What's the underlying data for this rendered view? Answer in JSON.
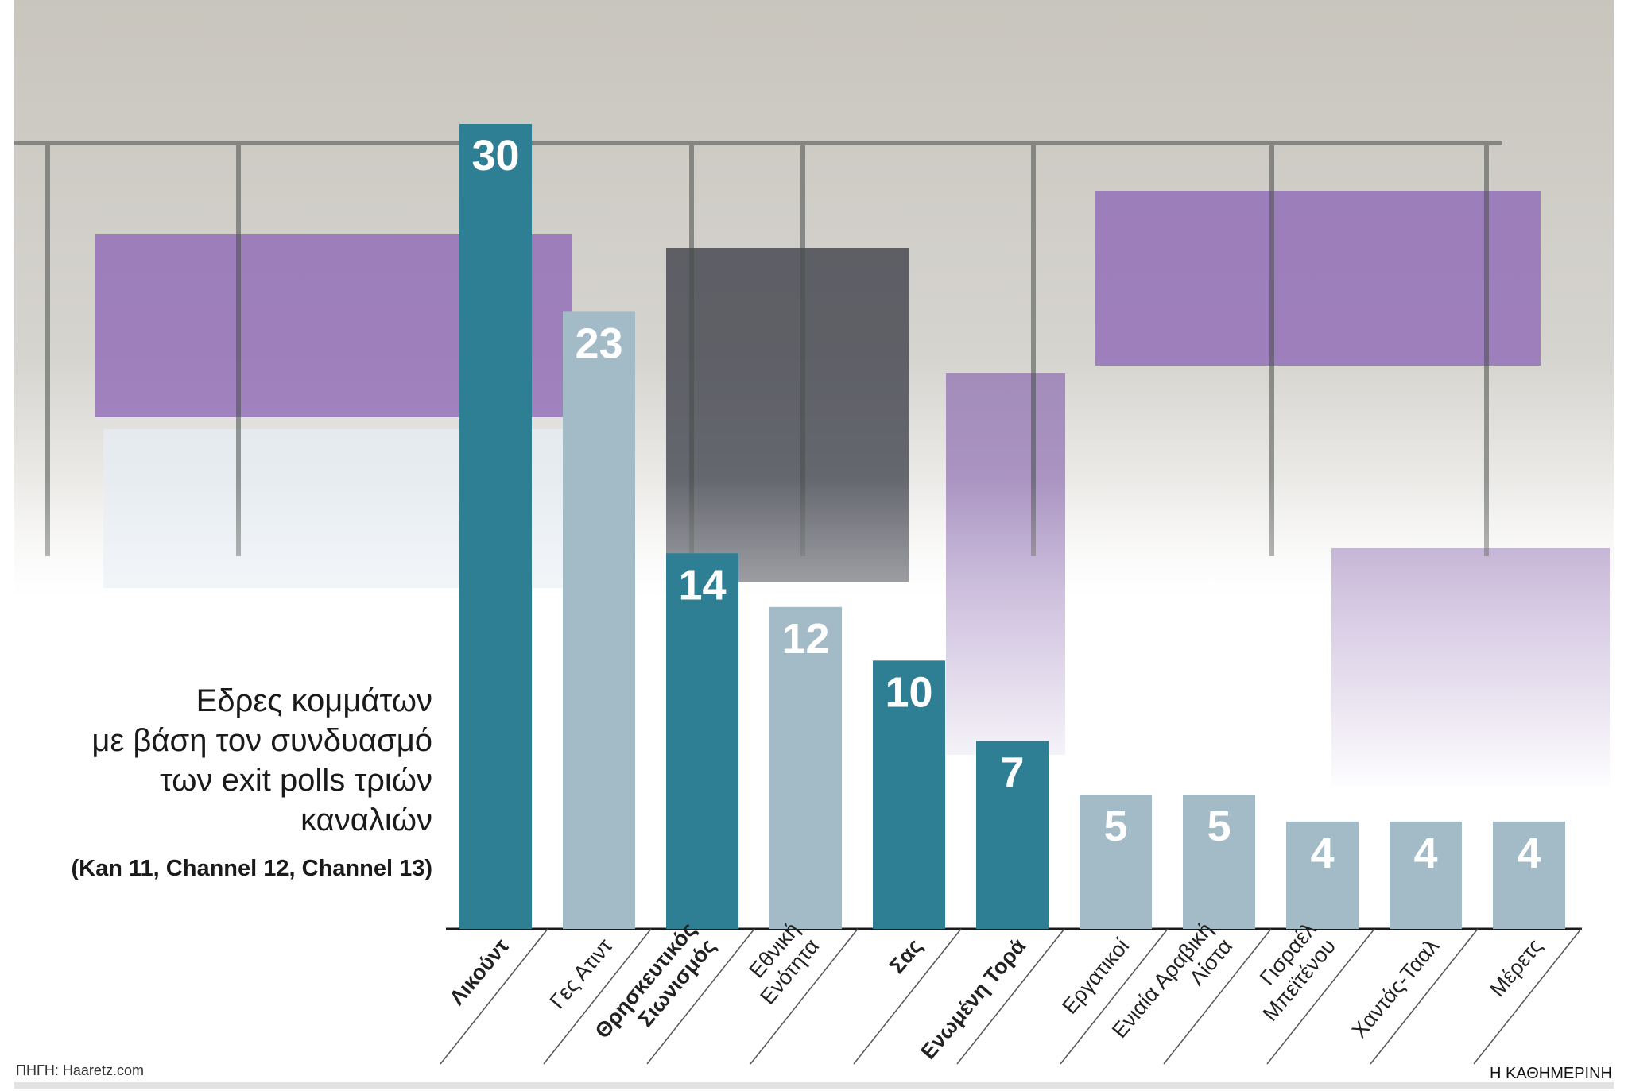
{
  "chart_data": {
    "type": "bar",
    "title": "Εδρες κομμάτων\nμε βάση τον συνδυασμό\nτων exit polls τριών\nκαναλιών",
    "subtitle": "(Kan 11, Channel 12, Channel 13)",
    "source": "ΠΗΓΗ: Haaretz.com",
    "brand": "Η ΚΑΘΗΜΕΡΙΝΗ",
    "categories": [
      "Λικούντ",
      "Γες Ατιντ",
      "Θρησκευτικός\nΣιωνισμός",
      "Εθνική\nΕνότητα",
      "Σας",
      "Ενωμένη Τορά",
      "Εργατικοί",
      "Ενιαία Αραβική\nΛίστα",
      "Γισραέλ\nΜπεϊτένου",
      "Χαντάς-Τααλ",
      "Μέρετς"
    ],
    "values": [
      30,
      23,
      14,
      12,
      10,
      7,
      5,
      5,
      4,
      4,
      4
    ],
    "colors": [
      "#2e7f93",
      "#a3bbc7",
      "#2e7f93",
      "#a3bbc7",
      "#2e7f93",
      "#2e7f93",
      "#a3bbc7",
      "#a3bbc7",
      "#a3bbc7",
      "#a3bbc7",
      "#a3bbc7"
    ],
    "bold_labels": [
      true,
      false,
      true,
      false,
      true,
      true,
      false,
      false,
      false,
      false,
      false
    ]
  }
}
